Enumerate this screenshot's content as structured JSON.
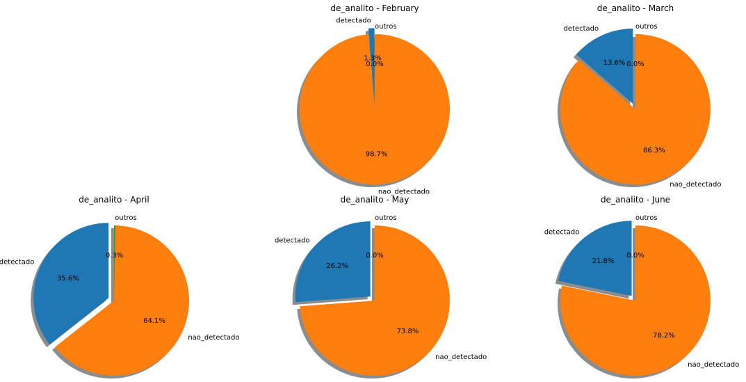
{
  "chart_data": [
    {
      "type": "pie",
      "title": "de_analito - February",
      "slices": [
        {
          "label": "detectado",
          "value": 1.3,
          "pct_label": "1.3%",
          "color": "#1f77b4",
          "exploded": true
        },
        {
          "label": "nao_detectado",
          "value": 98.7,
          "pct_label": "98.7%",
          "color": "#ff7f0e",
          "exploded": false
        },
        {
          "label": "outros",
          "value": 0.0,
          "pct_label": "0.0%",
          "color": "#2ca02c",
          "exploded": false
        }
      ],
      "start_angle": 90,
      "counterclockwise": true,
      "shadow": true
    },
    {
      "type": "pie",
      "title": "de_analito - March",
      "slices": [
        {
          "label": "detectado",
          "value": 13.6,
          "pct_label": "13.6%",
          "color": "#1f77b4",
          "exploded": true
        },
        {
          "label": "nao_detectado",
          "value": 86.3,
          "pct_label": "86.3%",
          "color": "#ff7f0e",
          "exploded": false
        },
        {
          "label": "outros",
          "value": 0.0,
          "pct_label": "0.0%",
          "color": "#2ca02c",
          "exploded": false
        }
      ],
      "start_angle": 90,
      "counterclockwise": true,
      "shadow": true
    },
    {
      "type": "pie",
      "title": "de_analito - April",
      "slices": [
        {
          "label": "detectado",
          "value": 35.6,
          "pct_label": "35.6%",
          "color": "#1f77b4",
          "exploded": true
        },
        {
          "label": "nao_detectado",
          "value": 64.1,
          "pct_label": "64.1%",
          "color": "#ff7f0e",
          "exploded": false
        },
        {
          "label": "outros",
          "value": 0.3,
          "pct_label": "0.3%",
          "color": "#2ca02c",
          "exploded": false
        }
      ],
      "start_angle": 90,
      "counterclockwise": true,
      "shadow": true
    },
    {
      "type": "pie",
      "title": "de_analito - May",
      "slices": [
        {
          "label": "detectado",
          "value": 26.2,
          "pct_label": "26.2%",
          "color": "#1f77b4",
          "exploded": true
        },
        {
          "label": "nao_detectado",
          "value": 73.8,
          "pct_label": "73.8%",
          "color": "#ff7f0e",
          "exploded": false
        },
        {
          "label": "outros",
          "value": 0.0,
          "pct_label": "0.0%",
          "color": "#2ca02c",
          "exploded": false
        }
      ],
      "start_angle": 90,
      "counterclockwise": true,
      "shadow": true
    },
    {
      "type": "pie",
      "title": "de_analito - June",
      "slices": [
        {
          "label": "detectado",
          "value": 21.8,
          "pct_label": "21.8%",
          "color": "#1f77b4",
          "exploded": true
        },
        {
          "label": "nao_detectado",
          "value": 78.2,
          "pct_label": "78.2%",
          "color": "#ff7f0e",
          "exploded": false
        },
        {
          "label": "outros",
          "value": 0.0,
          "pct_label": "0.0%",
          "color": "#2ca02c",
          "exploded": false
        }
      ],
      "start_angle": 90,
      "counterclockwise": true,
      "shadow": true
    }
  ]
}
